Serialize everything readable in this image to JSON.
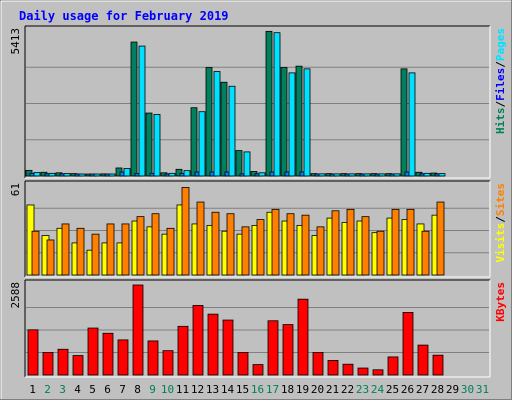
{
  "chart_data": {
    "type": "bar",
    "title": "Daily usage for February 2019",
    "days": [
      "1",
      "2",
      "3",
      "4",
      "5",
      "6",
      "7",
      "8",
      "9",
      "10",
      "11",
      "12",
      "13",
      "14",
      "15",
      "16",
      "17",
      "18",
      "19",
      "20",
      "21",
      "22",
      "23",
      "24",
      "25",
      "26",
      "27",
      "28",
      "29",
      "30",
      "31"
    ],
    "weekend_days": [
      2,
      3,
      9,
      10,
      16,
      17,
      23,
      24,
      30,
      31
    ],
    "panels": [
      {
        "id": "hits",
        "max_label": "5413",
        "ymax": 5413,
        "legend": [
          {
            "text": "Hits",
            "color": "#00805c"
          },
          {
            "text": "Files",
            "color": "#0000ff"
          },
          {
            "text": "Pages",
            "color": "#00e0ff"
          }
        ],
        "series": [
          {
            "name": "Hits",
            "color": "#00805c",
            "values": [
              210,
              140,
              120,
              90,
              60,
              80,
              300,
              5000,
              2350,
              120,
              250,
              2550,
              4050,
              3500,
              950,
              170,
              5400,
              4050,
              4100,
              90,
              90,
              90,
              90,
              90,
              90,
              4000,
              140,
              110,
              0,
              0,
              0
            ]
          },
          {
            "name": "Files",
            "color": "#0080ff",
            "values": [
              100,
              80,
              80,
              70,
              60,
              60,
              150,
              100,
              100,
              60,
              100,
              150,
              150,
              150,
              80,
              80,
              150,
              150,
              150,
              60,
              60,
              60,
              60,
              60,
              60,
              150,
              80,
              70,
              0,
              0,
              0
            ]
          },
          {
            "name": "Pages",
            "color": "#00e0ff",
            "values": [
              130,
              100,
              90,
              70,
              50,
              50,
              280,
              4850,
              2300,
              100,
              200,
              2400,
              3900,
              3350,
              900,
              120,
              5350,
              3850,
              4000,
              80,
              80,
              80,
              80,
              80,
              80,
              3850,
              100,
              90,
              0,
              0,
              0
            ]
          }
        ]
      },
      {
        "id": "visits",
        "max_label": "61",
        "ymax": 61,
        "legend": [
          {
            "text": "Visits",
            "color": "#ffff00"
          },
          {
            "text": "Sites",
            "color": "#ff8000"
          }
        ],
        "series": [
          {
            "name": "Visits",
            "color": "#ffff00",
            "values": [
              48,
              27,
              32,
              22,
              17,
              22,
              22,
              37,
              33,
              28,
              48,
              35,
              34,
              30,
              28,
              34,
              43,
              37,
              34,
              27,
              39,
              36,
              37,
              29,
              39,
              38,
              35,
              41,
              0,
              0,
              0
            ]
          },
          {
            "name": "Sites",
            "color": "#ff8000",
            "values": [
              30,
              24,
              35,
              32,
              28,
              35,
              35,
              40,
              42,
              32,
              60,
              50,
              43,
              42,
              33,
              38,
              45,
              42,
              41,
              33,
              44,
              45,
              40,
              30,
              45,
              45,
              30,
              50,
              0,
              0,
              0
            ]
          }
        ]
      },
      {
        "id": "kbytes",
        "max_label": "2588",
        "ymax": 2588,
        "legend": [
          {
            "text": "KBytes",
            "color": "#ff0000"
          }
        ],
        "series": [
          {
            "name": "KBytes",
            "color": "#ff0000",
            "values": [
              1300,
              650,
              740,
              560,
              1350,
              1200,
              1010,
              2588,
              980,
              700,
              1400,
              2000,
              1750,
              1580,
              650,
              300,
              1560,
              1450,
              2180,
              650,
              420,
              310,
              200,
              150,
              520,
              1800,
              860,
              570,
              0,
              0,
              0
            ]
          }
        ]
      }
    ]
  }
}
